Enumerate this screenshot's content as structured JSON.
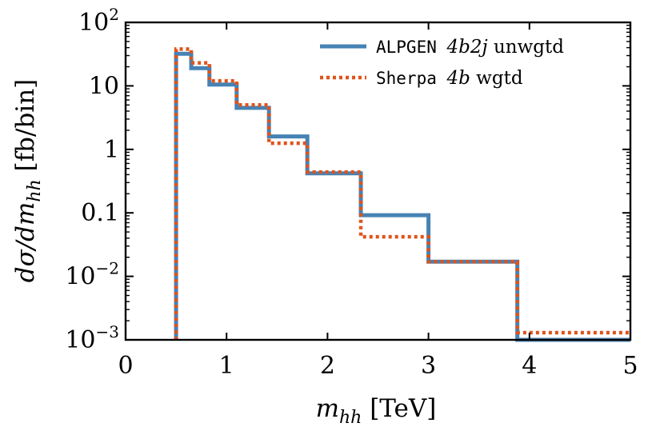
{
  "chart_data": {
    "type": "line",
    "title": "",
    "xlabel": "m_hh [TeV]",
    "ylabel": "dσ/dm_hh [fb/bin]",
    "xlim": [
      0,
      5
    ],
    "ylim": [
      0.001,
      100
    ],
    "yscale": "log",
    "x_ticks": [
      {
        "value": 0,
        "label": "0"
      },
      {
        "value": 1,
        "label": "1"
      },
      {
        "value": 2,
        "label": "2"
      },
      {
        "value": 3,
        "label": "3"
      },
      {
        "value": 4,
        "label": "4"
      },
      {
        "value": 5,
        "label": "5"
      }
    ],
    "y_ticks": [
      {
        "value": 0.001,
        "base": "10",
        "exp": "−3",
        "label": ""
      },
      {
        "value": 0.01,
        "base": "10",
        "exp": "−2",
        "label": ""
      },
      {
        "value": 0.1,
        "base": "",
        "exp": "",
        "label": "0.1"
      },
      {
        "value": 1,
        "base": "",
        "exp": "",
        "label": "1"
      },
      {
        "value": 10,
        "base": "",
        "exp": "",
        "label": "10"
      },
      {
        "value": 100,
        "base": "10",
        "exp": "2",
        "label": ""
      }
    ],
    "bin_edges": [
      0.5,
      0.65,
      0.83,
      1.1,
      1.42,
      1.8,
      2.33,
      3.0,
      3.88,
      5.0
    ],
    "series": [
      {
        "name": "ALPGEN 4b2j unwgtd",
        "color": "#4682b4",
        "style": "solid",
        "values": [
          32,
          19,
          10.5,
          4.5,
          1.6,
          0.42,
          0.092,
          0.017,
          0.001
        ]
      },
      {
        "name": "Sherpa 4b wgtd",
        "color": "#e0531b",
        "style": "dotted",
        "values": [
          38,
          23,
          12,
          5.0,
          1.25,
          0.44,
          0.042,
          0.017,
          0.0013
        ]
      }
    ],
    "legend": {
      "position": "top-right",
      "entries": [
        {
          "mono": "ALPGEN",
          "math": "4b2j",
          "text": "unwgtd"
        },
        {
          "mono": "Sherpa",
          "math": "4b",
          "text": "wgtd"
        }
      ]
    }
  }
}
